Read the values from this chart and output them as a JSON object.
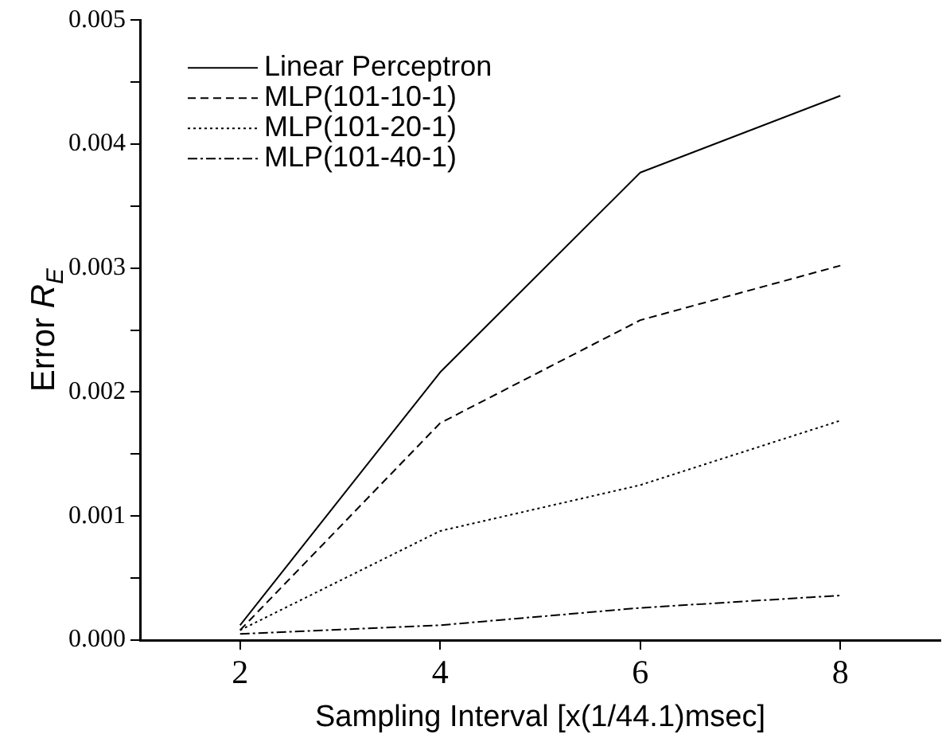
{
  "chart_data": {
    "type": "line",
    "xlabel": "Sampling Interval [x(1/44.1)msec]",
    "ylabel": "Error R$_{E}$",
    "x": [
      2,
      4,
      6,
      8
    ],
    "series": [
      {
        "name": "Linear Perceptron",
        "color": "#000000",
        "line_style": "solid",
        "values": [
          0.00012,
          0.00216,
          0.00377,
          0.00439
        ]
      },
      {
        "name": "MLP(101-10-1)",
        "color": "#000000",
        "line_style": "dashed",
        "values": [
          8e-05,
          0.00175,
          0.00258,
          0.00302
        ]
      },
      {
        "name": "MLP(101-20-1)",
        "color": "#000000",
        "line_style": "dotted",
        "values": [
          8e-05,
          0.00088,
          0.00125,
          0.00177
        ]
      },
      {
        "name": "MLP(101-40-1)",
        "color": "#000000",
        "line_style": "dashdot",
        "values": [
          5e-05,
          0.00012,
          0.00026,
          0.00036
        ]
      }
    ],
    "xlim": [
      1,
      9
    ],
    "xticks": [
      2,
      4,
      6,
      8
    ],
    "ylim": [
      0,
      0.005
    ],
    "yticks": [
      {
        "value": 0,
        "label": "0.000"
      },
      {
        "value": 0.0005,
        "label": null
      },
      {
        "value": 0.001,
        "label": "0.001"
      },
      {
        "value": 0.0015,
        "label": null
      },
      {
        "value": 0.002,
        "label": "0.002"
      },
      {
        "value": 0.0025,
        "label": null
      },
      {
        "value": 0.003,
        "label": "0.003"
      },
      {
        "value": 0.0035,
        "label": null
      },
      {
        "value": 0.004,
        "label": "0.004"
      },
      {
        "value": 0.0045,
        "label": null
      },
      {
        "value": 0.005,
        "label": "0.005"
      }
    ],
    "grid": false,
    "legend": "top left",
    "marker": "none"
  }
}
